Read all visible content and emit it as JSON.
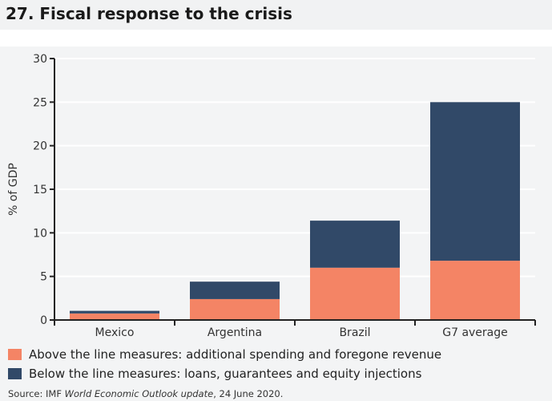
{
  "title": "27. Fiscal response to the crisis",
  "source": {
    "prefix": "Source: IMF ",
    "italic": "World Economic Outlook update",
    "suffix": ", 24 June 2020."
  },
  "chart_data": {
    "type": "bar",
    "stacked": true,
    "categories": [
      "Mexico",
      "Argentina",
      "Brazil",
      "G7 average"
    ],
    "ylabel": "% of GDP",
    "ylim": [
      0,
      30
    ],
    "yticks": [
      0,
      5,
      10,
      15,
      20,
      25,
      30
    ],
    "grid": true,
    "legend_position": "bottom",
    "series": [
      {
        "name": "Above the line measures: additional spending and foregone revenue",
        "color": "#f48465",
        "values": [
          0.75,
          2.4,
          6.0,
          6.8
        ]
      },
      {
        "name": "Below the line measures: loans, guarantees and equity injections",
        "color": "#314968",
        "values": [
          0.3,
          2.0,
          5.4,
          18.2
        ]
      }
    ]
  }
}
